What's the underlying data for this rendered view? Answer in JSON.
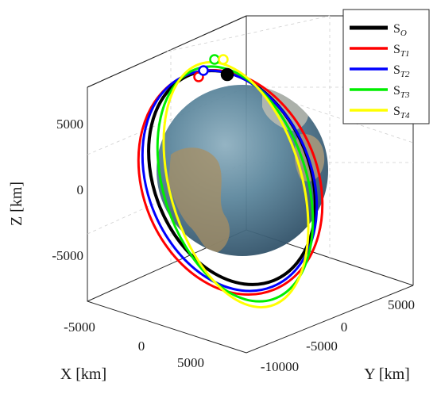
{
  "chart_data": {
    "type": "line",
    "subtype": "3d-orbits",
    "title": "",
    "xlabel": "X [km]",
    "ylabel": "Y [km]",
    "zlabel": "Z [km]",
    "x_ticks": [
      "-5000",
      "0",
      "5000"
    ],
    "y_ticks": [
      "-10000",
      "-5000",
      "0",
      "5000"
    ],
    "z_ticks": [
      "5000",
      "0",
      "-5000"
    ],
    "grid": true,
    "legend_position": "top-right",
    "central_body": "Earth",
    "series": [
      {
        "name": "S",
        "sub": "O",
        "color": "#000000"
      },
      {
        "name": "S",
        "sub": "T1",
        "color": "#ff0000"
      },
      {
        "name": "S",
        "sub": "T2",
        "color": "#0000ff"
      },
      {
        "name": "S",
        "sub": "T3",
        "color": "#00ee00"
      },
      {
        "name": "S",
        "sub": "T4",
        "color": "#ffff00"
      }
    ]
  }
}
